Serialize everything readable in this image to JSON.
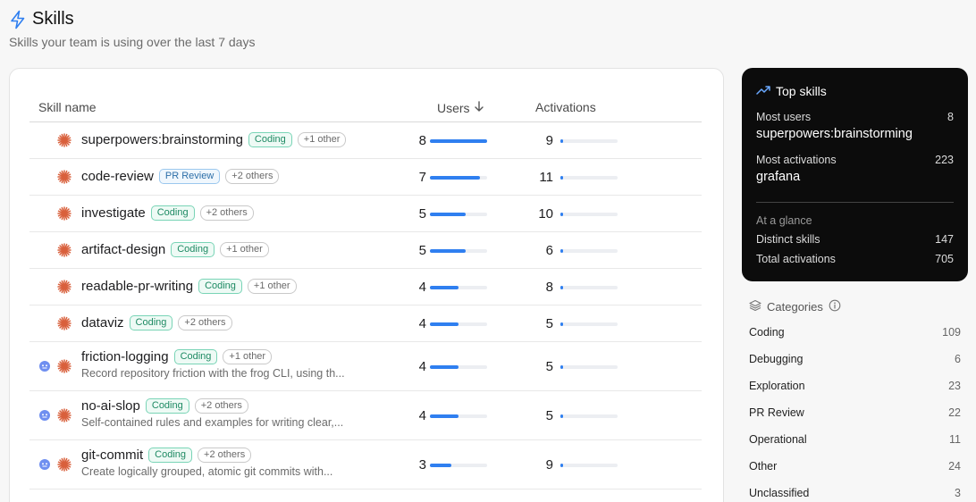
{
  "header": {
    "title": "Skills",
    "subtitle": "Skills your team is using over the last 7 days",
    "icon": "lightning-icon"
  },
  "table": {
    "columns": {
      "name": "Skill name",
      "users": "Users",
      "activations": "Activations"
    },
    "sort": {
      "column": "users",
      "direction": "descending"
    },
    "max_users": 8,
    "max_activations": 223,
    "rows": [
      {
        "name": "superpowers:brainstorming",
        "category": "Coding",
        "others": "+1 other",
        "users": 8,
        "activations": 9,
        "icons": [
          "spark-icon"
        ]
      },
      {
        "name": "code-review",
        "category": "PR Review",
        "others": "+2 others",
        "users": 7,
        "activations": 11,
        "icons": [
          "spark-icon"
        ]
      },
      {
        "name": "investigate",
        "category": "Coding",
        "others": "+2 others",
        "users": 5,
        "activations": 10,
        "icons": [
          "spark-icon"
        ]
      },
      {
        "name": "artifact-design",
        "category": "Coding",
        "others": "+1 other",
        "users": 5,
        "activations": 6,
        "icons": [
          "spark-icon"
        ]
      },
      {
        "name": "readable-pr-writing",
        "category": "Coding",
        "others": "+1 other",
        "users": 4,
        "activations": 8,
        "icons": [
          "spark-icon"
        ]
      },
      {
        "name": "dataviz",
        "category": "Coding",
        "others": "+2 others",
        "users": 4,
        "activations": 5,
        "icons": [
          "spark-icon"
        ]
      },
      {
        "name": "friction-logging",
        "category": "Coding",
        "others": "+1 other",
        "users": 4,
        "activations": 5,
        "description": "Record repository friction with the frog CLI, using th...",
        "icons": [
          "bot-icon",
          "spark-icon"
        ]
      },
      {
        "name": "no-ai-slop",
        "category": "Coding",
        "others": "+2 others",
        "users": 4,
        "activations": 5,
        "description": "Self-contained rules and examples for writing clear,...",
        "icons": [
          "bot-icon",
          "spark-icon"
        ]
      },
      {
        "name": "git-commit",
        "category": "Coding",
        "others": "+2 others",
        "users": 3,
        "activations": 9,
        "description": "Create logically grouped, atomic git commits with...",
        "icons": [
          "bot-icon",
          "spark-icon"
        ]
      }
    ]
  },
  "top_skills": {
    "title": "Top skills",
    "most_users_label": "Most users",
    "most_users_count": "8",
    "most_users_skill": "superpowers:brainstorming",
    "most_activations_label": "Most activations",
    "most_activations_count": "223",
    "most_activations_skill": "grafana",
    "glance_label": "At a glance",
    "distinct_label": "Distinct skills",
    "distinct_value": "147",
    "total_label": "Total activations",
    "total_value": "705"
  },
  "categories": {
    "title": "Categories",
    "items": [
      {
        "name": "Coding",
        "count": "109"
      },
      {
        "name": "Debugging",
        "count": "6"
      },
      {
        "name": "Exploration",
        "count": "23"
      },
      {
        "name": "PR Review",
        "count": "22"
      },
      {
        "name": "Operational",
        "count": "11"
      },
      {
        "name": "Other",
        "count": "24"
      },
      {
        "name": "Unclassified",
        "count": "3"
      }
    ]
  },
  "colors": {
    "accent": "#2f7ff0",
    "spark": "#d9603c",
    "tag_green": "#1e8a63",
    "tag_blue": "#2d6fa8"
  }
}
